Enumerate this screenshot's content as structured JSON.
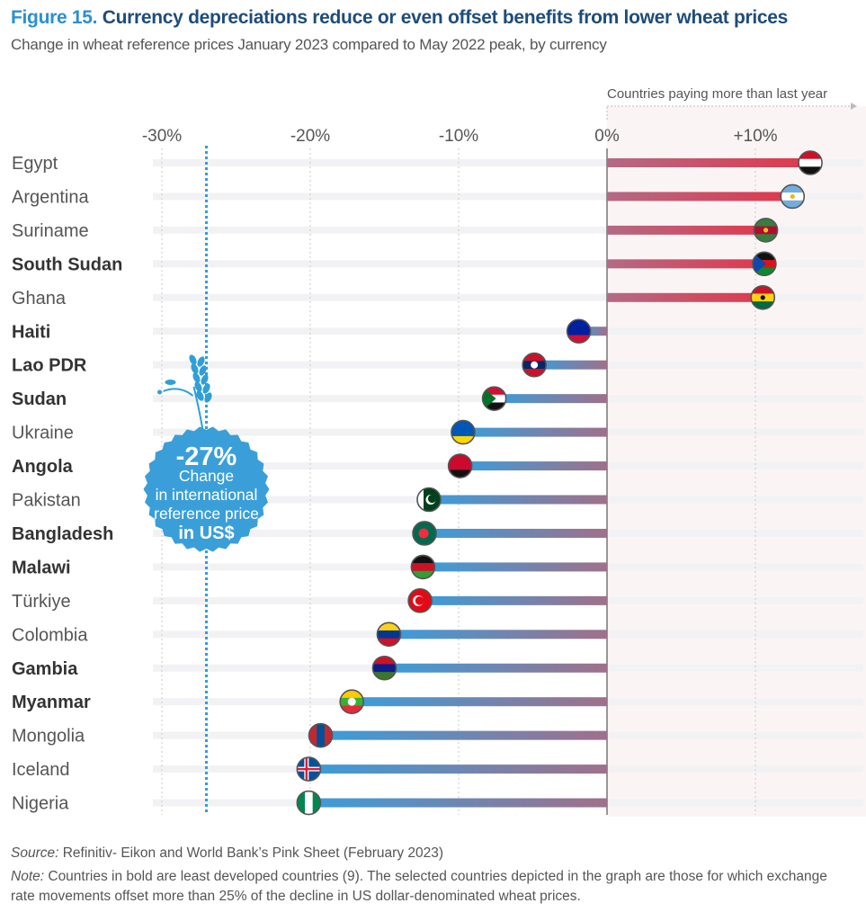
{
  "header": {
    "figure_label": "Figure 15.",
    "title": "Currency depreciations reduce or even offset benefits from lower wheat prices",
    "subtitle": "Change in wheat reference prices January 2023 compared to May 2022 peak, by currency"
  },
  "chart_data": {
    "type": "bar",
    "orientation": "horizontal",
    "title": "Currency depreciations reduce or even offset benefits from lower wheat prices",
    "subtitle": "Change in wheat reference prices January 2023 compared to May 2022 peak, by currency",
    "xlabel": "",
    "ylabel": "",
    "xlim": [
      -30,
      17
    ],
    "x_ticks": [
      "-30%",
      "-20%",
      "-10%",
      "0%",
      "+10%"
    ],
    "x_tick_values": [
      -30,
      -20,
      -10,
      0,
      10
    ],
    "categories": [
      "Egypt",
      "Argentina",
      "Suriname",
      "South Sudan",
      "Ghana",
      "Haiti",
      "Lao PDR",
      "Sudan",
      "Ukraine",
      "Angola",
      "Pakistan",
      "Bangladesh",
      "Malawi",
      "Türkiye",
      "Colombia",
      "Gambia",
      "Myanmar",
      "Mongolia",
      "Iceland",
      "Nigeria"
    ],
    "values": [
      13.7,
      12.5,
      10.7,
      10.6,
      10.5,
      -1.9,
      -4.9,
      -7.6,
      -9.7,
      -9.9,
      -12.0,
      -12.3,
      -12.4,
      -12.6,
      -14.7,
      -15.0,
      -17.2,
      -19.3,
      -20.1,
      -20.1
    ],
    "bold_categories": [
      "South Sudan",
      "Haiti",
      "Lao PDR",
      "Sudan",
      "Angola",
      "Bangladesh",
      "Malawi",
      "Gambia",
      "Myanmar"
    ],
    "reference_line": {
      "value": -27,
      "label_value": "-27%",
      "label_lines": [
        "Change",
        "in international",
        "reference price",
        "in US$"
      ]
    },
    "annotation": "Countries paying more than last year",
    "grid": true,
    "colors": {
      "positive": "#d83a50",
      "negative_far": "#3a9ddb",
      "negative_near": "#a0708a",
      "reference": "#2f9fd8",
      "badge": "#3a9fd9"
    }
  },
  "footer": {
    "source_label": "Source:",
    "source_text": " Refinitiv- Eikon and World Bank’s Pink Sheet (February 2023)",
    "note_label": "Note:",
    "note_text": " Countries in bold are least developed countries (9). The selected countries depicted in the graph are those for which exchange rate movements offset more than 25% of the decline in US dollar-denominated wheat prices."
  }
}
